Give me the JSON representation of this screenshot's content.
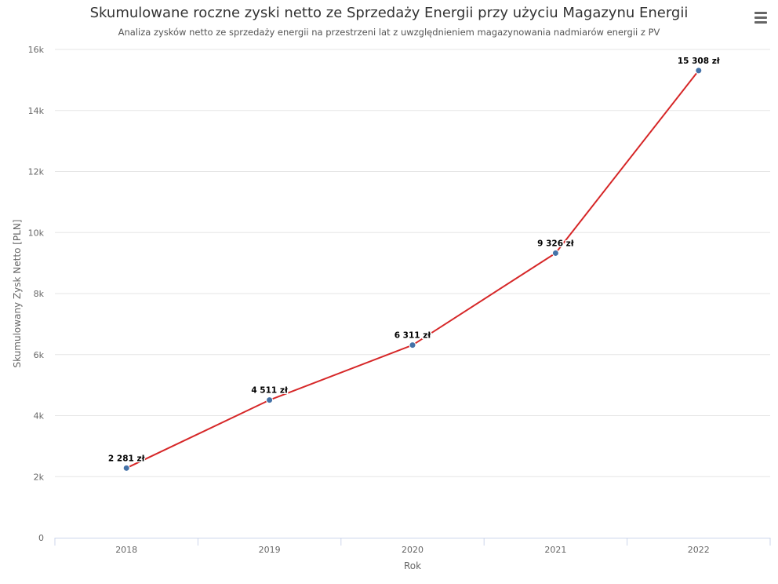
{
  "chart_data": {
    "type": "line",
    "title": "Skumulowane roczne zyski netto ze Sprzedaży Energii przy użyciu Magazynu Energii",
    "subtitle": "Analiza zysków netto ze sprzedaży energii na przestrzeni lat z uwzględnieniem magazynowania nadmiarów energii z PV",
    "xlabel": "Rok",
    "ylabel": "Skumulowany Zysk Netto [PLN]",
    "categories": [
      "2018",
      "2019",
      "2020",
      "2021",
      "2022"
    ],
    "series": [
      {
        "values": [
          2281,
          4511,
          6311,
          9326,
          15308
        ],
        "data_labels": [
          "2 281 zł",
          "4 511 zł",
          "6 311 zł",
          "9 326 zł",
          "15 308 zł"
        ],
        "line_color": "#d62728",
        "marker_color": "#4572a7"
      }
    ],
    "ylim": [
      0,
      16000
    ],
    "yticks": [
      0,
      2000,
      4000,
      6000,
      8000,
      10000,
      12000,
      14000,
      16000
    ],
    "ytick_labels": [
      "0",
      "2k",
      "4k",
      "6k",
      "8k",
      "10k",
      "12k",
      "14k",
      "16k"
    ],
    "grid": true,
    "legend": "none"
  },
  "menu": {
    "icon": "hamburger-menu-icon"
  },
  "colors": {
    "grid": "#e6e6e6",
    "axis": "#ccd6eb",
    "text": "#333333"
  }
}
